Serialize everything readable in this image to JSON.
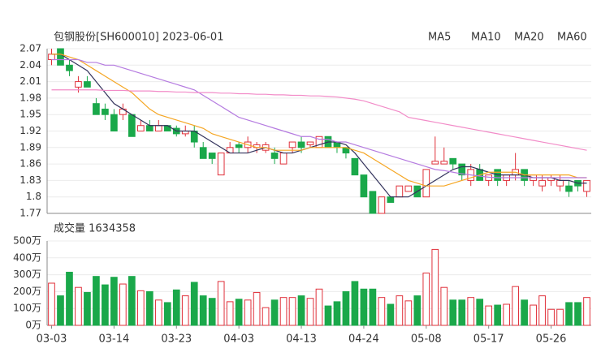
{
  "chart_data": [
    {
      "type": "candlestick",
      "title": "包钢股份[SH600010] 2023-06-01",
      "up_color": "#e0303a",
      "down_color": "#1aa84a",
      "open": [
        2.05,
        2.07,
        2.04,
        2.0,
        2.01,
        1.97,
        1.96,
        1.95,
        1.95,
        1.95,
        1.92,
        1.93,
        1.92,
        1.93,
        1.925,
        1.915,
        1.92,
        1.89,
        1.88,
        1.84,
        1.88,
        1.895,
        1.89,
        1.89,
        1.885,
        1.88,
        1.86,
        1.89,
        1.9,
        1.895,
        1.89,
        1.91,
        1.9,
        1.89,
        1.87,
        1.84,
        1.81,
        1.77,
        1.8,
        1.8,
        1.81,
        1.82,
        1.8,
        1.86,
        1.86,
        1.87,
        1.86,
        1.83,
        1.85,
        1.83,
        1.85,
        1.83,
        1.84,
        1.85,
        1.83,
        1.82,
        1.83,
        1.82,
        1.82,
        1.83,
        1.81
      ],
      "close": [
        2.06,
        2.04,
        2.03,
        2.01,
        2.0,
        1.95,
        1.95,
        1.92,
        1.96,
        1.91,
        1.93,
        1.92,
        1.93,
        1.92,
        1.915,
        1.92,
        1.9,
        1.87,
        1.87,
        1.88,
        1.89,
        1.89,
        1.9,
        1.895,
        1.895,
        1.87,
        1.88,
        1.9,
        1.89,
        1.9,
        1.91,
        1.89,
        1.89,
        1.88,
        1.84,
        1.8,
        1.77,
        1.8,
        1.79,
        1.82,
        1.82,
        1.8,
        1.85,
        1.865,
        1.865,
        1.86,
        1.84,
        1.85,
        1.83,
        1.84,
        1.83,
        1.84,
        1.85,
        1.83,
        1.84,
        1.83,
        1.835,
        1.83,
        1.81,
        1.82,
        1.83
      ],
      "high": [
        2.07,
        2.07,
        2.05,
        2.02,
        2.02,
        1.98,
        1.97,
        1.96,
        1.97,
        1.95,
        1.94,
        1.94,
        1.94,
        1.93,
        1.93,
        1.93,
        1.93,
        1.9,
        1.88,
        1.88,
        1.9,
        1.9,
        1.91,
        1.9,
        1.9,
        1.89,
        1.88,
        1.9,
        1.91,
        1.9,
        1.91,
        1.91,
        1.9,
        1.89,
        1.87,
        1.84,
        1.81,
        1.8,
        1.8,
        1.82,
        1.82,
        1.82,
        1.85,
        1.91,
        1.89,
        1.87,
        1.86,
        1.86,
        1.86,
        1.84,
        1.85,
        1.84,
        1.88,
        1.85,
        1.84,
        1.84,
        1.84,
        1.84,
        1.83,
        1.83,
        1.83
      ],
      "low": [
        2.04,
        2.04,
        2.02,
        1.99,
        2.0,
        1.95,
        1.94,
        1.92,
        1.94,
        1.91,
        1.92,
        1.92,
        1.92,
        1.92,
        1.91,
        1.91,
        1.89,
        1.87,
        1.86,
        1.84,
        1.88,
        1.88,
        1.88,
        1.88,
        1.88,
        1.86,
        1.86,
        1.88,
        1.88,
        1.89,
        1.89,
        1.89,
        1.88,
        1.87,
        1.84,
        1.8,
        1.77,
        1.77,
        1.79,
        1.8,
        1.81,
        1.8,
        1.8,
        1.86,
        1.86,
        1.85,
        1.83,
        1.82,
        1.83,
        1.82,
        1.82,
        1.82,
        1.83,
        1.82,
        1.82,
        1.81,
        1.82,
        1.81,
        1.8,
        1.81,
        1.8
      ],
      "series": [
        {
          "name": "MA5",
          "color": "#33335c",
          "values": [
            2.06,
            2.06,
            2.05,
            2.04,
            2.03,
            2.01,
            1.99,
            1.97,
            1.96,
            1.95,
            1.94,
            1.93,
            1.93,
            1.93,
            1.92,
            1.92,
            1.92,
            1.91,
            1.9,
            1.89,
            1.88,
            1.88,
            1.88,
            1.885,
            1.89,
            1.885,
            1.88,
            1.88,
            1.885,
            1.89,
            1.895,
            1.9,
            1.9,
            1.895,
            1.88,
            1.86,
            1.84,
            1.82,
            1.8,
            1.8,
            1.8,
            1.81,
            1.82,
            1.83,
            1.84,
            1.85,
            1.855,
            1.855,
            1.85,
            1.845,
            1.84,
            1.84,
            1.84,
            1.84,
            1.835,
            1.835,
            1.835,
            1.83,
            1.83,
            1.825,
            1.825
          ]
        },
        {
          "name": "MA10",
          "color": "#f5a623",
          "values": [
            2.06,
            2.06,
            2.055,
            2.05,
            2.04,
            2.03,
            2.02,
            2.01,
            2.0,
            1.99,
            1.975,
            1.96,
            1.95,
            1.945,
            1.94,
            1.935,
            1.93,
            1.925,
            1.915,
            1.91,
            1.905,
            1.9,
            1.895,
            1.89,
            1.89,
            1.885,
            1.885,
            1.885,
            1.885,
            1.89,
            1.89,
            1.89,
            1.89,
            1.89,
            1.885,
            1.88,
            1.87,
            1.86,
            1.85,
            1.84,
            1.83,
            1.825,
            1.82,
            1.82,
            1.82,
            1.825,
            1.83,
            1.835,
            1.84,
            1.845,
            1.845,
            1.845,
            1.845,
            1.84,
            1.84,
            1.84,
            1.84,
            1.84,
            1.84,
            1.835,
            1.835
          ]
        },
        {
          "name": "MA20",
          "color": "#b57be0",
          "values": [
            2.05,
            2.05,
            2.05,
            2.05,
            2.045,
            2.045,
            2.04,
            2.04,
            2.035,
            2.03,
            2.025,
            2.02,
            2.015,
            2.01,
            2.005,
            2.0,
            1.995,
            1.985,
            1.975,
            1.965,
            1.955,
            1.945,
            1.94,
            1.935,
            1.93,
            1.925,
            1.92,
            1.915,
            1.91,
            1.91,
            1.905,
            1.905,
            1.9,
            1.9,
            1.895,
            1.89,
            1.885,
            1.88,
            1.875,
            1.87,
            1.865,
            1.86,
            1.855,
            1.85,
            1.848,
            1.845,
            1.842,
            1.84,
            1.838,
            1.836,
            1.835,
            1.835,
            1.835,
            1.835,
            1.835,
            1.835,
            1.835,
            1.835,
            1.835,
            1.835,
            1.835
          ]
        },
        {
          "name": "MA60",
          "color": "#f28cc8",
          "values": [
            1.995,
            1.995,
            1.995,
            1.995,
            1.995,
            1.995,
            1.994,
            1.994,
            1.994,
            1.993,
            1.993,
            1.993,
            1.992,
            1.992,
            1.991,
            1.991,
            1.99,
            1.99,
            1.99,
            1.989,
            1.989,
            1.988,
            1.988,
            1.987,
            1.987,
            1.986,
            1.986,
            1.985,
            1.985,
            1.984,
            1.984,
            1.983,
            1.982,
            1.98,
            1.978,
            1.975,
            1.97,
            1.965,
            1.96,
            1.955,
            1.945,
            1.942,
            1.939,
            1.936,
            1.933,
            1.93,
            1.927,
            1.924,
            1.921,
            1.918,
            1.915,
            1.912,
            1.909,
            1.906,
            1.903,
            1.9,
            1.897,
            1.894,
            1.891,
            1.888,
            1.885
          ]
        }
      ],
      "ylim": [
        1.77,
        2.07
      ],
      "yticks": [
        {
          "value": 2.07,
          "label": "2.07"
        },
        {
          "value": 2.04,
          "label": "2.04"
        },
        {
          "value": 2.01,
          "label": "2.01"
        },
        {
          "value": 1.98,
          "label": "1.98"
        },
        {
          "value": 1.95,
          "label": "1.95"
        },
        {
          "value": 1.92,
          "label": "1.92"
        },
        {
          "value": 1.89,
          "label": "1.89"
        },
        {
          "value": 1.86,
          "label": "1.86"
        },
        {
          "value": 1.83,
          "label": "1.83"
        },
        1.8,
        1.77
      ],
      "grid": true
    },
    {
      "type": "bar",
      "title": "成交量 1634358",
      "categories": [
        "03-03",
        null,
        null,
        null,
        null,
        null,
        null,
        "03-14",
        null,
        null,
        null,
        null,
        null,
        null,
        "03-23",
        null,
        null,
        null,
        null,
        null,
        null,
        "04-03",
        null,
        null,
        null,
        null,
        null,
        null,
        "04-13",
        null,
        null,
        null,
        null,
        null,
        null,
        "04-24",
        null,
        null,
        null,
        null,
        null,
        null,
        "05-08",
        null,
        null,
        null,
        null,
        null,
        null,
        "05-17",
        null,
        null,
        null,
        null,
        null,
        null,
        "05-26",
        null,
        null,
        null,
        null
      ],
      "values": [
        250,
        175,
        315,
        225,
        195,
        290,
        240,
        285,
        245,
        290,
        205,
        200,
        150,
        135,
        210,
        175,
        255,
        175,
        160,
        260,
        140,
        155,
        150,
        195,
        105,
        150,
        165,
        165,
        175,
        160,
        215,
        115,
        140,
        200,
        260,
        215,
        215,
        165,
        125,
        175,
        145,
        175,
        310,
        450,
        225,
        150,
        150,
        165,
        155,
        115,
        120,
        125,
        230,
        150,
        120,
        175,
        95,
        95,
        135,
        135,
        165
      ],
      "ylim": [
        0,
        500
      ],
      "yticks": [
        {
          "value": 500,
          "label": "500万"
        },
        {
          "value": 400,
          "label": "400万"
        },
        {
          "value": 300,
          "label": "300万"
        },
        {
          "value": 200,
          "label": "200万"
        },
        {
          "value": 100,
          "label": "100万"
        },
        {
          "value": 0,
          "label": "0万"
        }
      ],
      "grid": true
    }
  ]
}
